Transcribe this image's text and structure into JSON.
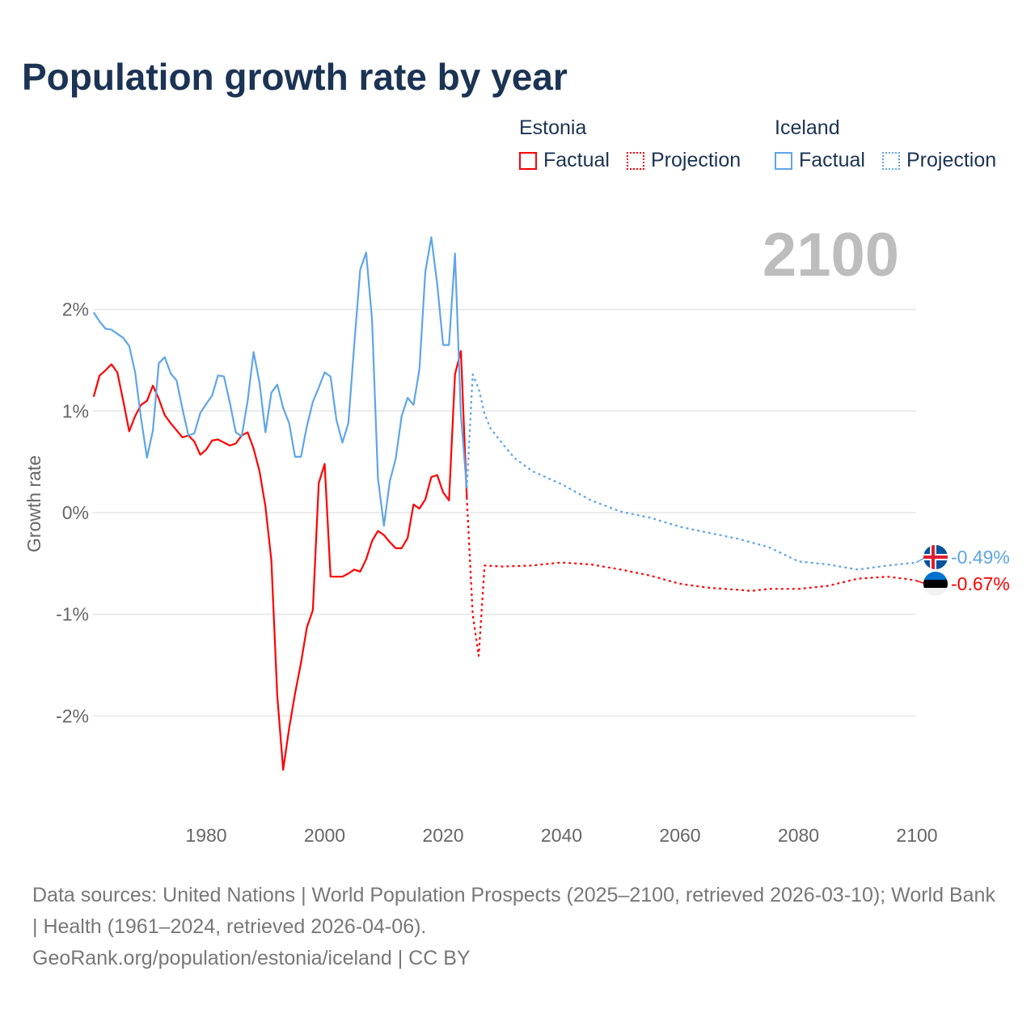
{
  "title": "Population growth rate by year",
  "legend": {
    "groups": [
      {
        "name": "Estonia",
        "color": "#ff0000",
        "factual": "Factual",
        "projection": "Projection"
      },
      {
        "name": "Iceland",
        "color": "#5ea5e8",
        "factual": "Factual",
        "projection": "Projection"
      }
    ]
  },
  "current_year": "2100",
  "footer": {
    "sources": "Data sources: United Nations | World Population Prospects (2025–2100, retrieved 2026-03-10); World Bank | Health (1961–2024, retrieved 2026-04-06).",
    "credit": "GeoRank.org/population/estonia/iceland | CC BY"
  },
  "chart_data": {
    "type": "line",
    "title": "Population growth rate by year",
    "xlabel": "",
    "ylabel": "Growth rate",
    "xlim": [
      1961,
      2100
    ],
    "ylim": [
      -2.8,
      2.8
    ],
    "x_ticks": [
      {
        "v": 1980,
        "label": "1980"
      },
      {
        "v": 2000,
        "label": "2000"
      },
      {
        "v": 2020,
        "label": "2020"
      },
      {
        "v": 2040,
        "label": "2040"
      },
      {
        "v": 2060,
        "label": "2060"
      },
      {
        "v": 2080,
        "label": "2080"
      },
      {
        "v": 2100,
        "label": "2100"
      }
    ],
    "y_ticks": [
      {
        "v": 2,
        "label": "2%"
      },
      {
        "v": 1,
        "label": "1%"
      },
      {
        "v": 0,
        "label": "0%"
      },
      {
        "v": -1,
        "label": "-1%"
      },
      {
        "v": -2,
        "label": "-2%"
      }
    ],
    "grid": true,
    "series": [
      {
        "name": "Estonia Factual",
        "country": "Estonia",
        "kind": "factual",
        "color": "#ff0000",
        "x": [
          1961,
          1962,
          1963,
          1964,
          1965,
          1966,
          1967,
          1968,
          1969,
          1970,
          1971,
          1972,
          1973,
          1974,
          1975,
          1976,
          1977,
          1978,
          1979,
          1980,
          1981,
          1982,
          1983,
          1984,
          1985,
          1986,
          1987,
          1988,
          1989,
          1990,
          1991,
          1992,
          1993,
          1994,
          1995,
          1996,
          1997,
          1998,
          1999,
          2000,
          2001,
          2002,
          2003,
          2004,
          2005,
          2006,
          2007,
          2008,
          2009,
          2010,
          2011,
          2012,
          2013,
          2014,
          2015,
          2016,
          2017,
          2018,
          2019,
          2020,
          2021,
          2022,
          2023,
          2024
        ],
        "y": [
          1.14,
          1.35,
          1.4,
          1.46,
          1.38,
          1.1,
          0.8,
          0.95,
          1.06,
          1.1,
          1.25,
          1.12,
          0.96,
          0.88,
          0.81,
          0.74,
          0.76,
          0.7,
          0.57,
          0.62,
          0.71,
          0.72,
          0.69,
          0.66,
          0.68,
          0.76,
          0.79,
          0.63,
          0.41,
          0.06,
          -0.47,
          -1.8,
          -2.53,
          -2.12,
          -1.78,
          -1.48,
          -1.13,
          -0.96,
          0.29,
          0.48,
          -0.63,
          -0.63,
          -0.63,
          -0.6,
          -0.56,
          -0.58,
          -0.46,
          -0.28,
          -0.18,
          -0.22,
          -0.29,
          -0.35,
          -0.35,
          -0.25,
          0.08,
          0.04,
          0.13,
          0.35,
          0.37,
          0.2,
          0.12,
          1.36,
          1.59,
          0.15
        ]
      },
      {
        "name": "Estonia Projection",
        "country": "Estonia",
        "kind": "projection",
        "color": "#ff0000",
        "x": [
          2024,
          2025,
          2026,
          2027,
          2030,
          2035,
          2040,
          2045,
          2050,
          2055,
          2060,
          2065,
          2070,
          2072,
          2075,
          2080,
          2085,
          2090,
          2095,
          2098,
          2100
        ],
        "y": [
          0.15,
          -1.0,
          -1.41,
          -0.52,
          -0.53,
          -0.52,
          -0.49,
          -0.51,
          -0.56,
          -0.62,
          -0.7,
          -0.74,
          -0.76,
          -0.77,
          -0.75,
          -0.75,
          -0.72,
          -0.65,
          -0.63,
          -0.65,
          -0.67
        ]
      },
      {
        "name": "Iceland Factual",
        "country": "Iceland",
        "kind": "factual",
        "color": "#5ea5e8",
        "x": [
          1961,
          1962,
          1963,
          1964,
          1965,
          1966,
          1967,
          1968,
          1969,
          1970,
          1971,
          1972,
          1973,
          1974,
          1975,
          1976,
          1977,
          1978,
          1979,
          1980,
          1981,
          1982,
          1983,
          1984,
          1985,
          1986,
          1987,
          1988,
          1989,
          1990,
          1991,
          1992,
          1993,
          1994,
          1995,
          1996,
          1997,
          1998,
          1999,
          2000,
          2001,
          2002,
          2003,
          2004,
          2005,
          2006,
          2007,
          2008,
          2009,
          2010,
          2011,
          2012,
          2013,
          2014,
          2015,
          2016,
          2017,
          2018,
          2019,
          2020,
          2021,
          2022,
          2023,
          2024
        ],
        "y": [
          1.97,
          1.88,
          1.81,
          1.8,
          1.76,
          1.72,
          1.64,
          1.38,
          0.93,
          0.54,
          0.81,
          1.47,
          1.53,
          1.37,
          1.3,
          1.02,
          0.76,
          0.78,
          0.98,
          1.07,
          1.15,
          1.35,
          1.34,
          1.08,
          0.79,
          0.75,
          1.1,
          1.58,
          1.28,
          0.79,
          1.18,
          1.26,
          1.03,
          0.88,
          0.55,
          0.55,
          0.85,
          1.09,
          1.23,
          1.38,
          1.34,
          0.91,
          0.69,
          0.88,
          1.65,
          2.39,
          2.56,
          1.9,
          0.34,
          -0.13,
          0.31,
          0.53,
          0.95,
          1.13,
          1.06,
          1.41,
          2.37,
          2.71,
          2.25,
          1.65,
          1.65,
          2.55,
          0.96,
          0.24
        ]
      },
      {
        "name": "Iceland Projection",
        "country": "Iceland",
        "kind": "projection",
        "color": "#5ea5e8",
        "x": [
          2024,
          2025,
          2026,
          2027,
          2028,
          2030,
          2032,
          2035,
          2040,
          2045,
          2050,
          2055,
          2060,
          2065,
          2070,
          2075,
          2080,
          2085,
          2090,
          2095,
          2100
        ],
        "y": [
          0.24,
          1.36,
          1.22,
          0.97,
          0.83,
          0.68,
          0.54,
          0.41,
          0.28,
          0.12,
          0.01,
          -0.05,
          -0.14,
          -0.2,
          -0.26,
          -0.34,
          -0.48,
          -0.51,
          -0.56,
          -0.52,
          -0.49
        ]
      }
    ],
    "end_labels": [
      {
        "country": "Iceland",
        "value": -0.49,
        "label": "-0.49%",
        "color": "#5ea5e8"
      },
      {
        "country": "Estonia",
        "value": -0.67,
        "label": "-0.67%",
        "color": "#ff0000"
      }
    ]
  }
}
